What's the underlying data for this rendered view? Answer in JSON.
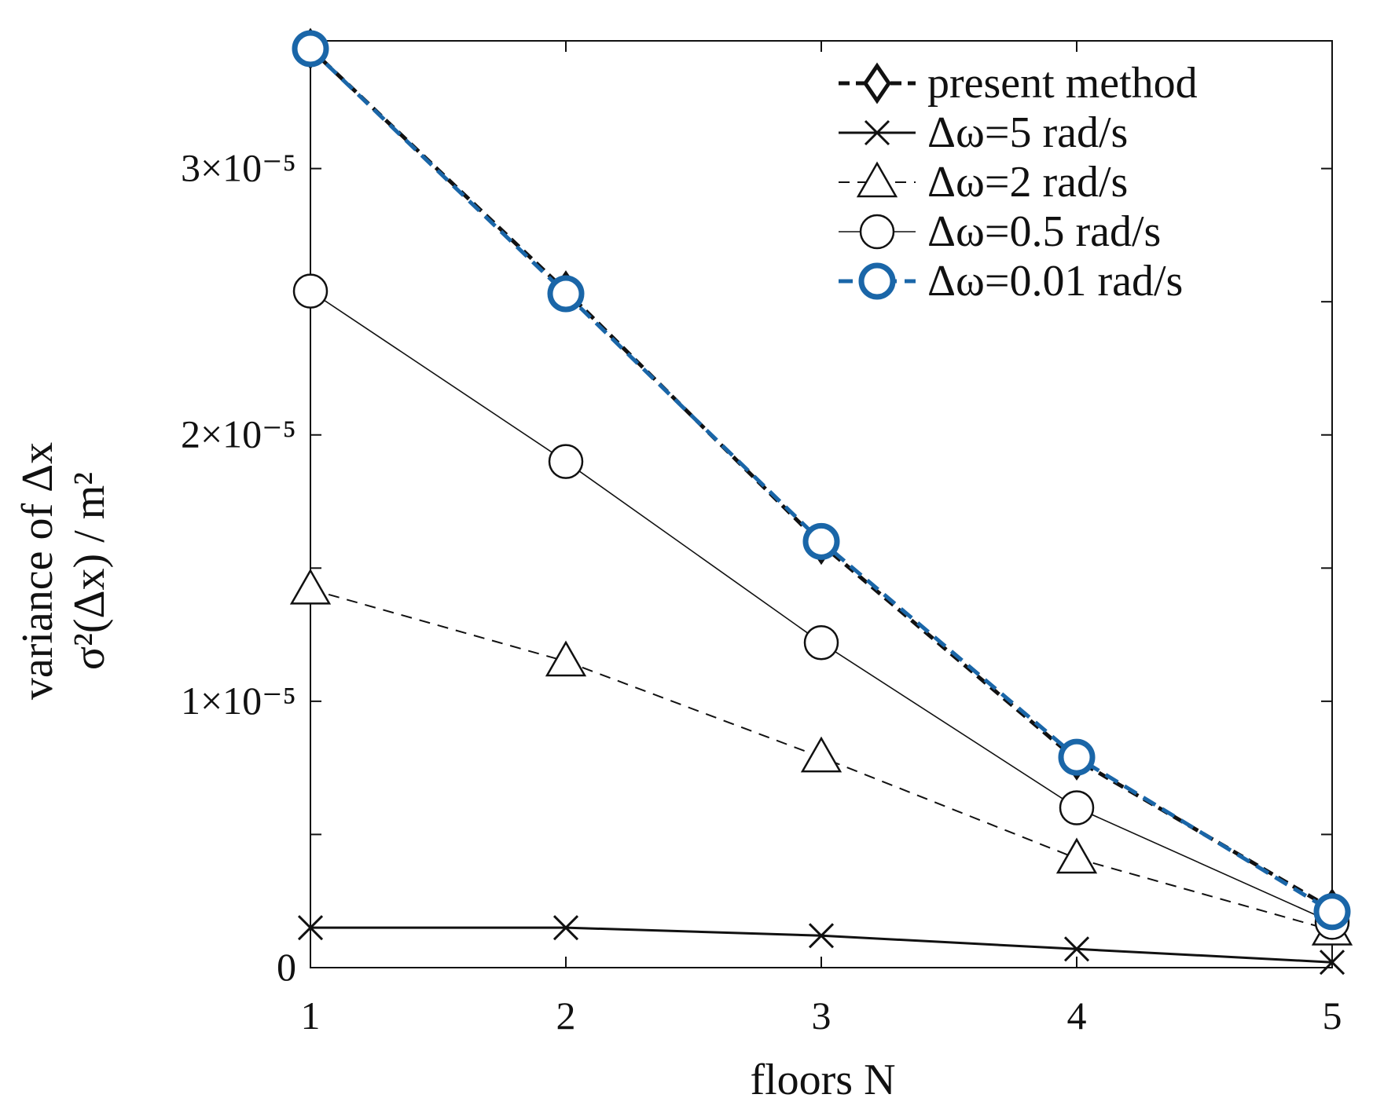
{
  "chart_data": {
    "type": "line",
    "xlabel": "floors N",
    "ylabel": [
      "variance of Δx",
      "σ²(Δx) / m²"
    ],
    "x": [
      1,
      2,
      3,
      4,
      5
    ],
    "xlim": [
      1,
      5
    ],
    "ylim": [
      0,
      3.45e-05
    ],
    "x_ticks": [
      "1",
      "2",
      "3",
      "4",
      "5"
    ],
    "y_ticks": [
      {
        "value": 0,
        "label": "0"
      },
      {
        "value": 1e-05,
        "label": "1×10⁻⁵"
      },
      {
        "value": 2e-05,
        "label": "2×10⁻⁵"
      },
      {
        "value": 3e-05,
        "label": "3×10⁻⁵"
      }
    ],
    "grid": false,
    "legend_position": "top-right",
    "series": [
      {
        "name": "present method",
        "marker": "diamond",
        "line": "dashed-thick",
        "color": "#111111",
        "values": [
          3.45e-05,
          2.54e-05,
          1.59e-05,
          7.8e-06,
          2.2e-06
        ]
      },
      {
        "name": "Δω=5 rad/s",
        "marker": "x",
        "line": "solid",
        "color": "#111111",
        "values": [
          1.5e-06,
          1.5e-06,
          1.2e-06,
          7e-07,
          2e-07
        ]
      },
      {
        "name": "Δω=2 rad/s",
        "marker": "triangle",
        "line": "dashed",
        "color": "#111111",
        "values": [
          1.42e-05,
          1.15e-05,
          7.9e-06,
          4.1e-06,
          1.4e-06
        ]
      },
      {
        "name": "Δω=0.5 rad/s",
        "marker": "circle",
        "line": "solid-thin",
        "color": "#111111",
        "values": [
          2.54e-05,
          1.9e-05,
          1.22e-05,
          6e-06,
          1.7e-06
        ]
      },
      {
        "name": "Δω=0.01 rad/s",
        "marker": "circle-blue",
        "line": "dashed-blue",
        "color": "#1a66a8",
        "values": [
          3.45e-05,
          2.53e-05,
          1.6e-05,
          7.9e-06,
          2.1e-06
        ]
      }
    ]
  }
}
